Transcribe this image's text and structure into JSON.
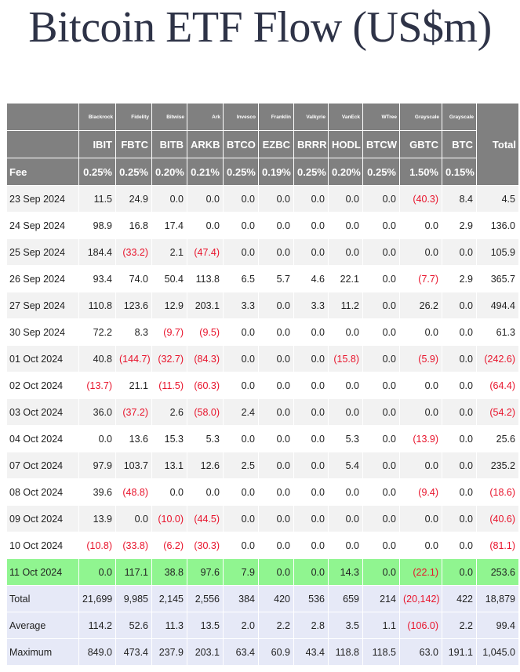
{
  "title": "Bitcoin ETF Flow (US$m)",
  "header": {
    "issuers": [
      "Blackrock",
      "Fidelity",
      "Bitwise",
      "Ark",
      "Invesco",
      "Franklin",
      "Valkyrie",
      "VanEck",
      "WTree",
      "Grayscale",
      "Grayscale"
    ],
    "total_label": "Total",
    "tickers": [
      "IBIT",
      "FBTC",
      "BITB",
      "ARKB",
      "BTCO",
      "EZBC",
      "BRRR",
      "HODL",
      "BTCW",
      "GBTC",
      "BTC"
    ],
    "fee_label": "Fee",
    "fees": [
      "0.25%",
      "0.25%",
      "0.20%",
      "0.21%",
      "0.25%",
      "0.19%",
      "0.25%",
      "0.20%",
      "0.25%",
      "1.50%",
      "0.15%"
    ]
  },
  "rows": [
    {
      "date": "23 Sep 2024",
      "values": [
        "11.5",
        "24.9",
        "0.0",
        "0.0",
        "0.0",
        "0.0",
        "0.0",
        "0.0",
        "0.0",
        "(40.3)",
        "8.4",
        "4.5"
      ]
    },
    {
      "date": "24 Sep 2024",
      "values": [
        "98.9",
        "16.8",
        "17.4",
        "0.0",
        "0.0",
        "0.0",
        "0.0",
        "0.0",
        "0.0",
        "0.0",
        "2.9",
        "136.0"
      ]
    },
    {
      "date": "25 Sep 2024",
      "values": [
        "184.4",
        "(33.2)",
        "2.1",
        "(47.4)",
        "0.0",
        "0.0",
        "0.0",
        "0.0",
        "0.0",
        "0.0",
        "0.0",
        "105.9"
      ]
    },
    {
      "date": "26 Sep 2024",
      "values": [
        "93.4",
        "74.0",
        "50.4",
        "113.8",
        "6.5",
        "5.7",
        "4.6",
        "22.1",
        "0.0",
        "(7.7)",
        "2.9",
        "365.7"
      ]
    },
    {
      "date": "27 Sep 2024",
      "values": [
        "110.8",
        "123.6",
        "12.9",
        "203.1",
        "3.3",
        "0.0",
        "3.3",
        "11.2",
        "0.0",
        "26.2",
        "0.0",
        "494.4"
      ]
    },
    {
      "date": "30 Sep 2024",
      "values": [
        "72.2",
        "8.3",
        "(9.7)",
        "(9.5)",
        "0.0",
        "0.0",
        "0.0",
        "0.0",
        "0.0",
        "0.0",
        "0.0",
        "61.3"
      ]
    },
    {
      "date": "01 Oct 2024",
      "values": [
        "40.8",
        "(144.7)",
        "(32.7)",
        "(84.3)",
        "0.0",
        "0.0",
        "0.0",
        "(15.8)",
        "0.0",
        "(5.9)",
        "0.0",
        "(242.6)"
      ]
    },
    {
      "date": "02 Oct 2024",
      "values": [
        "(13.7)",
        "21.1",
        "(11.5)",
        "(60.3)",
        "0.0",
        "0.0",
        "0.0",
        "0.0",
        "0.0",
        "0.0",
        "0.0",
        "(64.4)"
      ]
    },
    {
      "date": "03 Oct 2024",
      "values": [
        "36.0",
        "(37.2)",
        "2.6",
        "(58.0)",
        "2.4",
        "0.0",
        "0.0",
        "0.0",
        "0.0",
        "0.0",
        "0.0",
        "(54.2)"
      ]
    },
    {
      "date": "04 Oct 2024",
      "values": [
        "0.0",
        "13.6",
        "15.3",
        "5.3",
        "0.0",
        "0.0",
        "0.0",
        "5.3",
        "0.0",
        "(13.9)",
        "0.0",
        "25.6"
      ]
    },
    {
      "date": "07 Oct 2024",
      "values": [
        "97.9",
        "103.7",
        "13.1",
        "12.6",
        "2.5",
        "0.0",
        "0.0",
        "5.4",
        "0.0",
        "0.0",
        "0.0",
        "235.2"
      ]
    },
    {
      "date": "08 Oct 2024",
      "values": [
        "39.6",
        "(48.8)",
        "0.0",
        "0.0",
        "0.0",
        "0.0",
        "0.0",
        "0.0",
        "0.0",
        "(9.4)",
        "0.0",
        "(18.6)"
      ]
    },
    {
      "date": "09 Oct 2024",
      "values": [
        "13.9",
        "0.0",
        "(10.0)",
        "(44.5)",
        "0.0",
        "0.0",
        "0.0",
        "0.0",
        "0.0",
        "0.0",
        "0.0",
        "(40.6)"
      ]
    },
    {
      "date": "10 Oct 2024",
      "values": [
        "(10.8)",
        "(33.8)",
        "(6.2)",
        "(30.3)",
        "0.0",
        "0.0",
        "0.0",
        "0.0",
        "0.0",
        "0.0",
        "0.0",
        "(81.1)"
      ]
    },
    {
      "date": "11 Oct 2024",
      "values": [
        "0.0",
        "117.1",
        "38.8",
        "97.6",
        "7.9",
        "0.0",
        "0.0",
        "14.3",
        "0.0",
        "(22.1)",
        "0.0",
        "253.6"
      ],
      "highlight": true
    }
  ],
  "summary": [
    {
      "label": "Total",
      "values": [
        "21,699",
        "9,985",
        "2,145",
        "2,556",
        "384",
        "420",
        "536",
        "659",
        "214",
        "(20,142)",
        "422",
        "18,879"
      ]
    },
    {
      "label": "Average",
      "values": [
        "114.2",
        "52.6",
        "11.3",
        "13.5",
        "2.0",
        "2.2",
        "2.8",
        "3.5",
        "1.1",
        "(106.0)",
        "2.2",
        "99.4"
      ]
    },
    {
      "label": "Maximum",
      "values": [
        "849.0",
        "473.4",
        "237.9",
        "203.1",
        "63.4",
        "60.9",
        "43.4",
        "118.8",
        "118.5",
        "63.0",
        "191.1",
        "1,045.0"
      ]
    }
  ],
  "colors": {
    "header_bg": "#808080",
    "negative": "#e8132b",
    "highlight": "#90f590",
    "summary_bg": "#e6e9f7",
    "title": "#2e3347"
  }
}
